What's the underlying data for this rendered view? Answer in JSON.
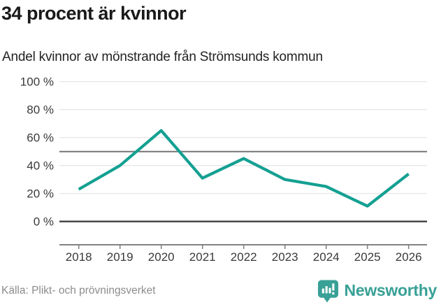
{
  "header": {
    "title": "34 procent är kvinnor",
    "subtitle": "Andel kvinnor av mönstrande från Strömsunds kommun"
  },
  "footer": {
    "source": "Källa: Plikt- och prövningsverket",
    "brand": "Newsworthy"
  },
  "colors": {
    "line": "#14a092",
    "grid": "#e2e2e2",
    "reference_line": "#757575",
    "zero_line": "#3f3f3f",
    "axis": "#828282",
    "tick_label": "#3a3a3a",
    "source_text": "#8c8c8c",
    "brand": "#38a096"
  },
  "chart_data": {
    "type": "line",
    "title": "34 procent är kvinnor",
    "subtitle": "Andel kvinnor av mönstrande från Strömsunds kommun",
    "categories": [
      "2018",
      "2019",
      "2020",
      "2021",
      "2022",
      "2023",
      "2024",
      "2025",
      "2026"
    ],
    "values": [
      23,
      40,
      65,
      31,
      45,
      30,
      25,
      11,
      34
    ],
    "unit": "%",
    "xlabel": "",
    "ylabel": "",
    "ylim": [
      0,
      100
    ],
    "yticks": [
      0,
      20,
      40,
      60,
      80,
      100
    ],
    "ytick_labels": [
      "0 %",
      "20 %",
      "40 %",
      "60 %",
      "80 %",
      "100 %"
    ],
    "reference_line": 50,
    "grid": true,
    "legend_position": "none",
    "source": "Källa: Plikt- och prövningsverket"
  }
}
